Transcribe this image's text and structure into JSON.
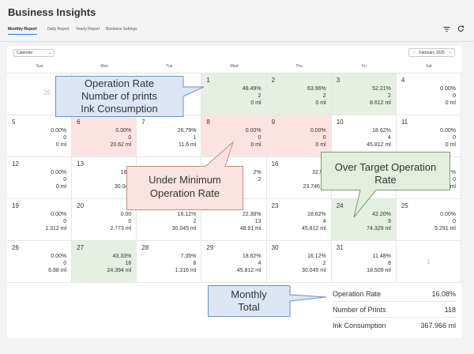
{
  "app": {
    "title": "Business Insights"
  },
  "tabs": [
    {
      "label": "Monthly Report",
      "active": true
    },
    {
      "label": "Daily Report",
      "active": false
    },
    {
      "label": "Yearly Report",
      "active": false
    },
    {
      "label": "Business Settings",
      "active": false
    }
  ],
  "header_icons": [
    "filter-icon",
    "refresh-icon"
  ],
  "calendar": {
    "view": "Calendar",
    "month_label": "February 2025",
    "days_of_week": [
      "Sun",
      "Mon",
      "Tue",
      "Wed",
      "Thu",
      "Fri",
      "Sat"
    ],
    "weeks": [
      [
        {
          "date": "26",
          "out": true
        },
        {
          "date": "",
          "out": true
        },
        {
          "date": "",
          "out": true
        },
        {
          "date": "1",
          "rate": "48.49%",
          "prints": "2",
          "ink": "0 ml",
          "status": "green"
        },
        {
          "date": "2",
          "rate": "63.96%",
          "prints": "2",
          "ink": "0 ml",
          "status": "green"
        },
        {
          "date": "3",
          "rate": "52.21%",
          "prints": "2",
          "ink": "8.612 ml",
          "status": "green"
        },
        {
          "date": "4",
          "rate": "0.00%",
          "prints": "0",
          "ink": "0 ml",
          "status": ""
        }
      ],
      [
        {
          "date": "5",
          "rate": "0.00%",
          "prints": "0",
          "ink": "0 ml",
          "status": ""
        },
        {
          "date": "6",
          "rate": "0.00%",
          "prints": "0",
          "ink": "20.62 ml",
          "status": "pink"
        },
        {
          "date": "7",
          "rate": "26.79%",
          "prints": "1",
          "ink": "11.6 ml",
          "status": ""
        },
        {
          "date": "8",
          "rate": "0.00%",
          "prints": "0",
          "ink": "0 ml",
          "status": "pink"
        },
        {
          "date": "9",
          "rate": "0.00%",
          "prints": "0",
          "ink": "0 ml",
          "status": "pink"
        },
        {
          "date": "10",
          "rate": "18.62%",
          "prints": "4",
          "ink": "45.812 ml",
          "status": ""
        },
        {
          "date": "11",
          "rate": "0.00%",
          "prints": "0",
          "ink": "0 ml",
          "status": ""
        }
      ],
      [
        {
          "date": "12",
          "rate": "0.00%",
          "prints": "0",
          "ink": "0 ml",
          "status": ""
        },
        {
          "date": "13",
          "rate": "16.1",
          "prints": "",
          "ink": "30.045",
          "status": ""
        },
        {
          "date": "",
          "rate": "",
          "prints": "",
          "ink": "",
          "status": ""
        },
        {
          "date": "",
          "rate": "2%",
          "prints": "2",
          "ink": "",
          "status": ""
        },
        {
          "date": "16",
          "rate": "32.94",
          "prints": "",
          "ink": "23.746 m",
          "status": ""
        },
        {
          "date": "",
          "rate": "",
          "prints": "",
          "ink": "",
          "status": ""
        },
        {
          "date": "",
          "rate": "%",
          "prints": "0",
          "ink": "ml",
          "status": ""
        }
      ],
      [
        {
          "date": "19",
          "rate": "0.00%",
          "prints": "0",
          "ink": "1.312 ml",
          "status": ""
        },
        {
          "date": "20",
          "rate": "0.00",
          "prints": "0",
          "ink": "2.773 ml",
          "status": ""
        },
        {
          "date": "21",
          "rate": "16.12%",
          "prints": "2",
          "ink": "30.045 ml",
          "status": ""
        },
        {
          "date": "22",
          "rate": "22.38%",
          "prints": "13",
          "ink": "48.91 ml",
          "status": ""
        },
        {
          "date": "23",
          "rate": "18.62%",
          "prints": "4",
          "ink": "45.812 ml",
          "status": ""
        },
        {
          "date": "24",
          "rate": "42.20%",
          "prints": "9",
          "ink": "74.329 ml",
          "status": "green"
        },
        {
          "date": "25",
          "rate": "0.00%",
          "prints": "0",
          "ink": "5.291 ml",
          "status": ""
        }
      ],
      [
        {
          "date": "26",
          "rate": "0.00%",
          "prints": "0",
          "ink": "6.88 ml",
          "status": ""
        },
        {
          "date": "27",
          "rate": "43.33%",
          "prints": "16",
          "ink": "24.394 ml",
          "status": "green"
        },
        {
          "date": "28",
          "rate": "7.35%",
          "prints": "8",
          "ink": "1.316 ml",
          "status": ""
        },
        {
          "date": "29",
          "rate": "18.62%",
          "prints": "4",
          "ink": "45.812 ml",
          "status": ""
        },
        {
          "date": "30",
          "rate": "16.12%",
          "prints": "2",
          "ink": "30.045 ml",
          "status": ""
        },
        {
          "date": "31",
          "rate": "11.48%",
          "prints": "8",
          "ink": "18.509 ml",
          "status": ""
        },
        {
          "date": "1",
          "out": true,
          "center": true
        }
      ]
    ]
  },
  "monthly_total": {
    "rows": [
      {
        "label": "Operation Rate",
        "value": "16.08%"
      },
      {
        "label": "Number of Prints",
        "value": "118"
      },
      {
        "label": "Ink Consumption",
        "value": "367.966 ml"
      }
    ]
  },
  "callouts": {
    "cell_legend": [
      "Operation Rate",
      "Number of prints",
      "Ink Consumption"
    ],
    "under_minimum": [
      "Under Minimum",
      "Operation Rate"
    ],
    "over_target": [
      "Over Target Operation",
      "Rate"
    ],
    "monthly_total": [
      "Monthly",
      "Total"
    ]
  },
  "colors": {
    "green_cell": "#e5efe2",
    "pink_cell": "#fbe3e1",
    "blue_callout": "#dce6f5",
    "pink_callout": "#fbe3e1",
    "green_callout": "#e3eedd",
    "tab_accent": "#2f7bd9"
  }
}
